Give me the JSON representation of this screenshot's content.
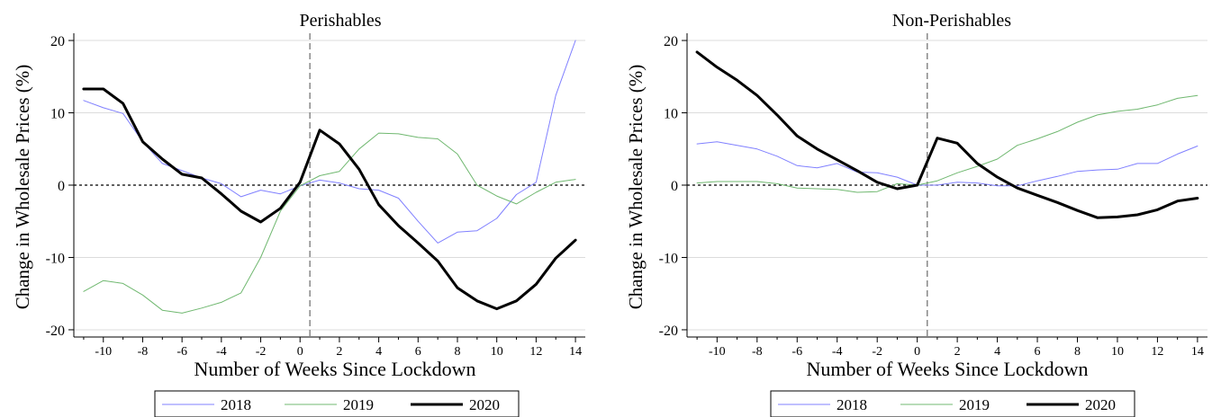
{
  "shared": {
    "ylabel": "Change in Wholesale Prices (%)",
    "xlabel": "Number of Weeks Since Lockdown",
    "x_ticks": [
      -10,
      -8,
      -6,
      -4,
      -2,
      0,
      2,
      4,
      6,
      8,
      10,
      12,
      14
    ],
    "x_tick_labels": [
      "-10",
      "-8",
      "-6",
      "-4",
      "-2",
      "0",
      "2",
      "4",
      "6",
      "8",
      "10",
      "12",
      "14"
    ],
    "y_ticks": [
      -20,
      -10,
      0,
      10,
      20
    ],
    "y_tick_labels": [
      "-20",
      "-10",
      "0",
      "10",
      "20"
    ],
    "xlim": [
      -11.5,
      14.5
    ],
    "ylim": [
      -21,
      21
    ],
    "lockdown_x": 0.5,
    "series_style": {
      "2018": {
        "color": "#8080ff",
        "width": 1
      },
      "2019": {
        "color": "#70b870",
        "width": 1
      },
      "2020": {
        "color": "#000000",
        "width": 3
      }
    }
  },
  "chart_data": [
    {
      "type": "line",
      "title": "Perishables",
      "xlabel": "Number of Weeks Since Lockdown",
      "ylabel": "Change in Wholesale Prices (%)",
      "xlim": [
        -11.5,
        14.5
      ],
      "ylim": [
        -21,
        21
      ],
      "grid": true,
      "legend": "bottom-center",
      "x": [
        -11,
        -10,
        -9,
        -8,
        -7,
        -6,
        -5,
        -4,
        -3,
        -2,
        -1,
        0,
        1,
        2,
        3,
        4,
        5,
        6,
        7,
        8,
        9,
        10,
        11,
        12,
        13,
        14
      ],
      "series": [
        {
          "name": "2018",
          "values": [
            11.7,
            10.7,
            9.9,
            6.0,
            3.0,
            2.0,
            1.0,
            0.2,
            -1.6,
            -0.7,
            -1.2,
            -0.1,
            0.7,
            0.3,
            -0.5,
            -0.7,
            -1.8,
            -5.0,
            -8.0,
            -6.5,
            -6.3,
            -4.6,
            -1.3,
            0.4,
            12.4,
            20.0
          ]
        },
        {
          "name": "2019",
          "values": [
            -14.7,
            -13.2,
            -13.6,
            -15.2,
            -17.3,
            -17.7,
            -17.0,
            -16.2,
            -14.9,
            -10.0,
            -3.6,
            -0.1,
            1.3,
            1.9,
            5.0,
            7.2,
            7.1,
            6.6,
            6.4,
            4.3,
            0.0,
            -1.5,
            -2.6,
            -1.0,
            0.4,
            0.8
          ]
        },
        {
          "name": "2020",
          "values": [
            13.3,
            13.3,
            11.3,
            6.0,
            3.6,
            1.5,
            1.0,
            -1.2,
            -3.6,
            -5.1,
            -3.2,
            0.4,
            7.6,
            5.7,
            2.2,
            -2.7,
            -5.6,
            -8.0,
            -10.5,
            -14.2,
            -16.0,
            -17.1,
            -16.0,
            -13.7,
            -10.1,
            -7.6
          ]
        }
      ]
    },
    {
      "type": "line",
      "title": "Non-Perishables",
      "xlabel": "Number of Weeks Since Lockdown",
      "ylabel": "Change in Wholesale Prices (%)",
      "xlim": [
        -11.5,
        14.5
      ],
      "ylim": [
        -21,
        21
      ],
      "grid": true,
      "legend": "bottom-center",
      "x": [
        -11,
        -10,
        -9,
        -8,
        -7,
        -6,
        -5,
        -4,
        -3,
        -2,
        -1,
        0,
        1,
        2,
        3,
        4,
        5,
        6,
        7,
        8,
        9,
        10,
        11,
        12,
        13,
        14
      ],
      "series": [
        {
          "name": "2018",
          "values": [
            5.7,
            6.0,
            5.5,
            5.0,
            4.0,
            2.7,
            2.4,
            3.0,
            1.8,
            1.7,
            1.1,
            0.0,
            0.0,
            0.4,
            0.3,
            -0.1,
            -0.1,
            0.6,
            1.2,
            1.9,
            2.1,
            2.2,
            3.0,
            3.0,
            4.3,
            5.4
          ]
        },
        {
          "name": "2019",
          "values": [
            0.3,
            0.5,
            0.5,
            0.5,
            0.2,
            -0.4,
            -0.5,
            -0.6,
            -1.0,
            -0.9,
            0.2,
            0.0,
            0.6,
            1.7,
            2.6,
            3.6,
            5.5,
            6.4,
            7.4,
            8.7,
            9.7,
            10.2,
            10.5,
            11.1,
            12.0,
            12.4
          ]
        },
        {
          "name": "2020",
          "values": [
            18.4,
            16.3,
            14.5,
            12.4,
            9.7,
            6.8,
            5.0,
            3.5,
            2.0,
            0.4,
            -0.5,
            0.0,
            6.5,
            5.8,
            3.0,
            1.1,
            -0.4,
            -1.4,
            -2.4,
            -3.5,
            -4.5,
            -4.4,
            -4.1,
            -3.4,
            -2.2,
            -1.8
          ]
        }
      ]
    }
  ]
}
